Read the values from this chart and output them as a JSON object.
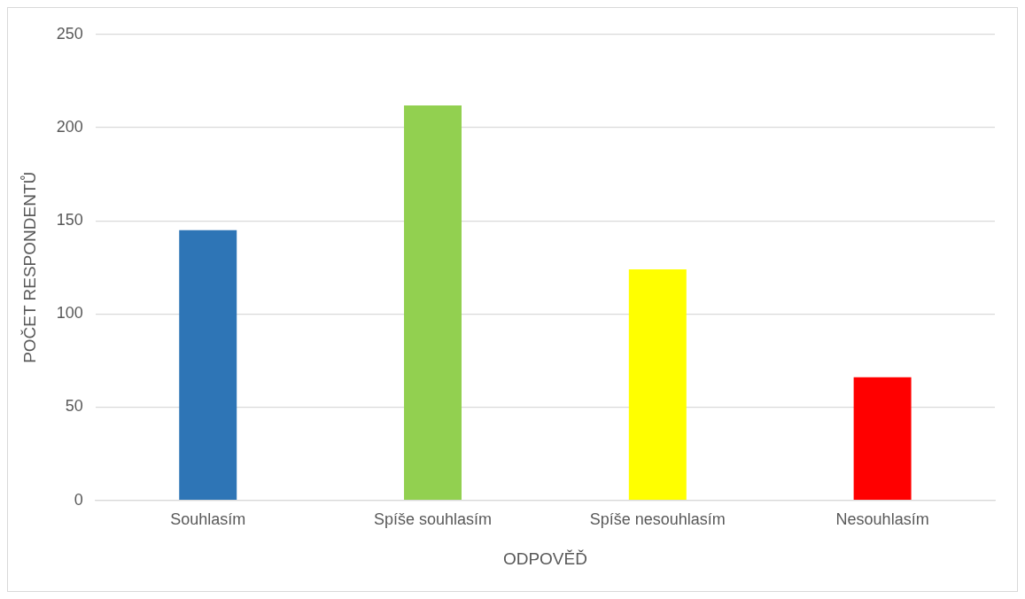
{
  "chart_data": {
    "type": "bar",
    "xlabel": "ODPOVĚĎ",
    "ylabel": "POČET RESPONDENTŮ",
    "categories": [
      "Souhlasím",
      "Spíše souhlasím",
      "Spíše nesouhlasím",
      "Nesouhlasím"
    ],
    "values": [
      145,
      212,
      124,
      66
    ],
    "colors": [
      "#2e75b6",
      "#92d050",
      "#ffff00",
      "#ff0000"
    ],
    "ylim": [
      0,
      250
    ],
    "yticks": [
      0,
      50,
      100,
      150,
      200,
      250
    ],
    "grid": "y",
    "legend": false
  }
}
